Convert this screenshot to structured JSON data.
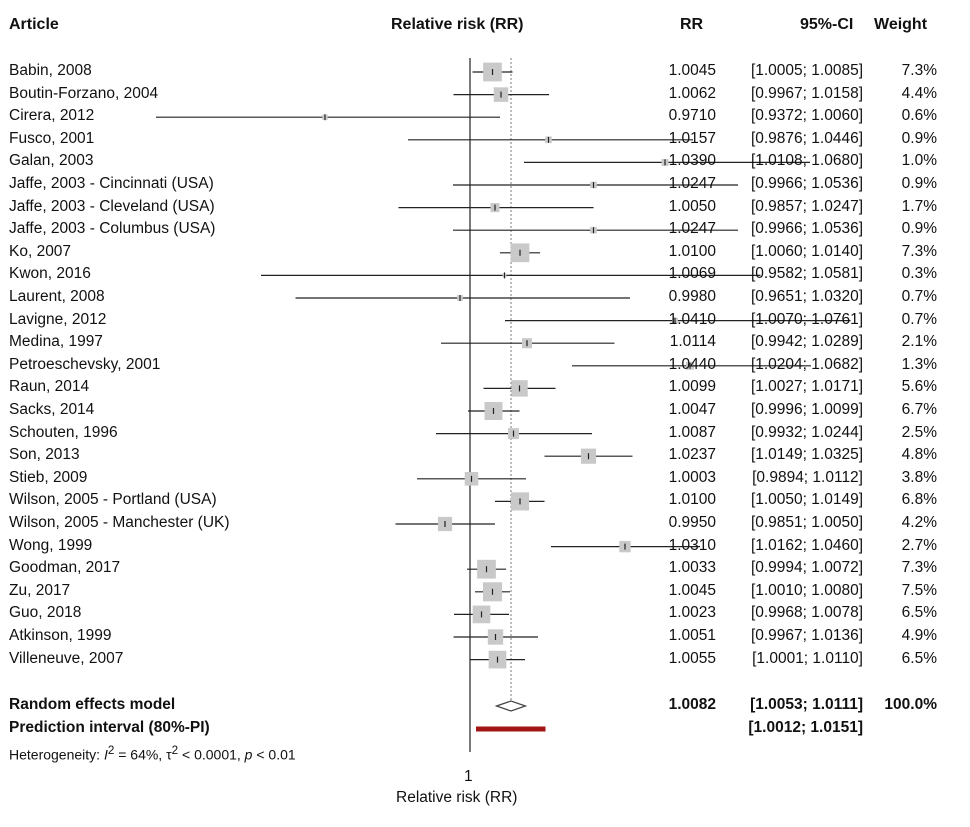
{
  "chart_data": {
    "type": "forest",
    "columns": {
      "article": "Article",
      "plot": "Relative risk (RR)",
      "rr": "RR",
      "ci": "95%-CI",
      "weight": "Weight"
    },
    "xlabel": "Relative risk (RR)",
    "reference_value": 1,
    "xlim": [
      0.955,
      1.0765
    ],
    "x_tick_labels": [
      "1"
    ],
    "studies": [
      {
        "article": "Babin, 2008",
        "rr": 1.0045,
        "lo": 1.0005,
        "hi": 1.0085,
        "rr_text": "1.0045",
        "ci_text": "[1.0005; 1.0085]",
        "weight": 7.3,
        "weight_text": "7.3%"
      },
      {
        "article": "Boutin-Forzano, 2004",
        "rr": 1.0062,
        "lo": 0.9967,
        "hi": 1.0158,
        "rr_text": "1.0062",
        "ci_text": "[0.9967; 1.0158]",
        "weight": 4.4,
        "weight_text": "4.4%"
      },
      {
        "article": "Cirera, 2012",
        "rr": 0.971,
        "lo": 0.9372,
        "hi": 1.006,
        "rr_text": "0.9710",
        "ci_text": "[0.9372; 1.0060]",
        "weight": 0.6,
        "weight_text": "0.6%"
      },
      {
        "article": "Fusco, 2001",
        "rr": 1.0157,
        "lo": 0.9876,
        "hi": 1.0446,
        "rr_text": "1.0157",
        "ci_text": "[0.9876; 1.0446]",
        "weight": 0.9,
        "weight_text": "0.9%"
      },
      {
        "article": "Galan, 2003",
        "rr": 1.039,
        "lo": 1.0108,
        "hi": 1.068,
        "rr_text": "1.0390",
        "ci_text": "[1.0108; 1.0680]",
        "weight": 1.0,
        "weight_text": "1.0%"
      },
      {
        "article": "Jaffe, 2003 - Cincinnati (USA)",
        "rr": 1.0247,
        "lo": 0.9966,
        "hi": 1.0536,
        "rr_text": "1.0247",
        "ci_text": "[0.9966; 1.0536]",
        "weight": 0.9,
        "weight_text": "0.9%"
      },
      {
        "article": "Jaffe, 2003 - Cleveland (USA)",
        "rr": 1.005,
        "lo": 0.9857,
        "hi": 1.0247,
        "rr_text": "1.0050",
        "ci_text": "[0.9857; 1.0247]",
        "weight": 1.7,
        "weight_text": "1.7%"
      },
      {
        "article": "Jaffe, 2003 - Columbus (USA)",
        "rr": 1.0247,
        "lo": 0.9966,
        "hi": 1.0536,
        "rr_text": "1.0247",
        "ci_text": "[0.9966; 1.0536]",
        "weight": 0.9,
        "weight_text": "0.9%"
      },
      {
        "article": "Ko, 2007",
        "rr": 1.01,
        "lo": 1.006,
        "hi": 1.014,
        "rr_text": "1.0100",
        "ci_text": "[1.0060; 1.0140]",
        "weight": 7.3,
        "weight_text": "7.3%"
      },
      {
        "article": "Kwon, 2016",
        "rr": 1.0069,
        "lo": 0.9582,
        "hi": 1.0581,
        "rr_text": "1.0069",
        "ci_text": "[0.9582; 1.0581]",
        "weight": 0.3,
        "weight_text": "0.3%"
      },
      {
        "article": "Laurent, 2008",
        "rr": 0.998,
        "lo": 0.9651,
        "hi": 1.032,
        "rr_text": "0.9980",
        "ci_text": "[0.9651; 1.0320]",
        "weight": 0.7,
        "weight_text": "0.7%"
      },
      {
        "article": "Lavigne, 2012",
        "rr": 1.041,
        "lo": 1.007,
        "hi": 1.0761,
        "rr_text": "1.0410",
        "ci_text": "[1.0070; 1.0761]",
        "weight": 0.7,
        "weight_text": "0.7%"
      },
      {
        "article": "Medina, 1997",
        "rr": 1.0114,
        "lo": 0.9942,
        "hi": 1.0289,
        "rr_text": "1.0114",
        "ci_text": "[0.9942; 1.0289]",
        "weight": 2.1,
        "weight_text": "2.1%"
      },
      {
        "article": "Petroeschevsky, 2001",
        "rr": 1.044,
        "lo": 1.0204,
        "hi": 1.0682,
        "rr_text": "1.0440",
        "ci_text": "[1.0204; 1.0682]",
        "weight": 1.3,
        "weight_text": "1.3%"
      },
      {
        "article": "Raun, 2014",
        "rr": 1.0099,
        "lo": 1.0027,
        "hi": 1.0171,
        "rr_text": "1.0099",
        "ci_text": "[1.0027; 1.0171]",
        "weight": 5.6,
        "weight_text": "5.6%"
      },
      {
        "article": "Sacks, 2014",
        "rr": 1.0047,
        "lo": 0.9996,
        "hi": 1.0099,
        "rr_text": "1.0047",
        "ci_text": "[0.9996; 1.0099]",
        "weight": 6.7,
        "weight_text": "6.7%"
      },
      {
        "article": "Schouten, 1996",
        "rr": 1.0087,
        "lo": 0.9932,
        "hi": 1.0244,
        "rr_text": "1.0087",
        "ci_text": "[0.9932; 1.0244]",
        "weight": 2.5,
        "weight_text": "2.5%"
      },
      {
        "article": "Son, 2013",
        "rr": 1.0237,
        "lo": 1.0149,
        "hi": 1.0325,
        "rr_text": "1.0237",
        "ci_text": "[1.0149; 1.0325]",
        "weight": 4.8,
        "weight_text": "4.8%"
      },
      {
        "article": "Stieb, 2009",
        "rr": 1.0003,
        "lo": 0.9894,
        "hi": 1.0112,
        "rr_text": "1.0003",
        "ci_text": "[0.9894; 1.0112]",
        "weight": 3.8,
        "weight_text": "3.8%"
      },
      {
        "article": "Wilson, 2005 - Portland (USA)",
        "rr": 1.01,
        "lo": 1.005,
        "hi": 1.0149,
        "rr_text": "1.0100",
        "ci_text": "[1.0050; 1.0149]",
        "weight": 6.8,
        "weight_text": "6.8%"
      },
      {
        "article": "Wilson, 2005 - Manchester (UK)",
        "rr": 0.995,
        "lo": 0.9851,
        "hi": 1.005,
        "rr_text": "0.9950",
        "ci_text": "[0.9851; 1.0050]",
        "weight": 4.2,
        "weight_text": "4.2%"
      },
      {
        "article": "Wong, 1999",
        "rr": 1.031,
        "lo": 1.0162,
        "hi": 1.046,
        "rr_text": "1.0310",
        "ci_text": "[1.0162; 1.0460]",
        "weight": 2.7,
        "weight_text": "2.7%"
      },
      {
        "article": "Goodman, 2017",
        "rr": 1.0033,
        "lo": 0.9994,
        "hi": 1.0072,
        "rr_text": "1.0033",
        "ci_text": "[0.9994; 1.0072]",
        "weight": 7.3,
        "weight_text": "7.3%"
      },
      {
        "article": "Zu, 2017",
        "rr": 1.0045,
        "lo": 1.001,
        "hi": 1.008,
        "rr_text": "1.0045",
        "ci_text": "[1.0010; 1.0080]",
        "weight": 7.5,
        "weight_text": "7.5%"
      },
      {
        "article": "Guo, 2018",
        "rr": 1.0023,
        "lo": 0.9968,
        "hi": 1.0078,
        "rr_text": "1.0023",
        "ci_text": "[0.9968; 1.0078]",
        "weight": 6.5,
        "weight_text": "6.5%"
      },
      {
        "article": "Atkinson, 1999",
        "rr": 1.0051,
        "lo": 0.9967,
        "hi": 1.0136,
        "rr_text": "1.0051",
        "ci_text": "[0.9967; 1.0136]",
        "weight": 4.9,
        "weight_text": "4.9%"
      },
      {
        "article": "Villeneuve, 2007",
        "rr": 1.0055,
        "lo": 1.0001,
        "hi": 1.011,
        "rr_text": "1.0055",
        "ci_text": "[1.0001; 1.0110]",
        "weight": 6.5,
        "weight_text": "6.5%"
      }
    ],
    "pooled": {
      "label": "Random effects model",
      "rr": 1.0082,
      "lo": 1.0053,
      "hi": 1.0111,
      "rr_text": "1.0082",
      "ci_text": "[1.0053; 1.0111]",
      "weight_text": "100.0%"
    },
    "prediction_interval": {
      "label": "Prediction interval (80%-PI)",
      "lo": 1.0012,
      "hi": 1.0151,
      "ci_text": "[1.0012; 1.0151]"
    },
    "heterogeneity": {
      "prefix": "Heterogeneity: ",
      "i2_symbol": "I",
      "i2_sup": "2",
      "i2_value": " = 64%, ",
      "tau2_symbol": "τ",
      "tau2_sup": "2",
      "tau2_value": " < 0.0001, ",
      "p_symbol": "p",
      "p_value": " < 0.01"
    },
    "colors": {
      "box": "#c9c9c9",
      "ci_line": "#222222",
      "diamond": "#444444",
      "prediction": "#a31515",
      "reference": "#222222",
      "pooled_ref": "#777777"
    }
  }
}
